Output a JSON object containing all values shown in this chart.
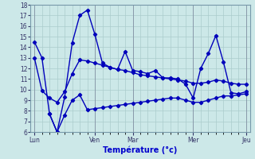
{
  "xlabel": "Température (°c)",
  "background_color": "#cce8e8",
  "grid_color": "#aacccc",
  "line_color": "#0000bb",
  "ylim": [
    6,
    18
  ],
  "yticks": [
    6,
    7,
    8,
    9,
    10,
    11,
    12,
    13,
    14,
    15,
    16,
    17,
    18
  ],
  "num_points": 29,
  "day_x": [
    0,
    8,
    13,
    21,
    28
  ],
  "day_labels": [
    "Lun",
    "Ven",
    "Mar",
    "Mer",
    "Jeu"
  ],
  "max_temps": [
    14.5,
    13.0,
    7.7,
    6.0,
    9.3,
    14.4,
    17.0,
    17.5,
    15.2,
    12.5,
    12.1,
    11.9,
    13.6,
    11.8,
    11.7,
    11.5,
    11.8,
    11.1,
    11.1,
    11.0,
    10.5,
    9.2,
    12.0,
    13.4,
    15.1,
    12.6,
    9.7,
    9.6,
    9.8
  ],
  "mid_temps": [
    13.0,
    9.9,
    9.2,
    8.8,
    9.8,
    11.5,
    12.8,
    12.7,
    12.5,
    12.3,
    12.1,
    11.9,
    11.8,
    11.6,
    11.4,
    11.3,
    11.2,
    11.1,
    11.0,
    10.9,
    10.8,
    10.6,
    10.6,
    10.7,
    10.9,
    10.8,
    10.6,
    10.5,
    10.5
  ],
  "min_temps": [
    null,
    null,
    7.7,
    6.0,
    7.6,
    9.0,
    9.5,
    8.1,
    8.2,
    8.3,
    8.4,
    8.5,
    8.6,
    8.7,
    8.8,
    8.9,
    9.0,
    9.1,
    9.2,
    9.2,
    9.0,
    8.8,
    8.8,
    9.0,
    9.2,
    9.4,
    9.4,
    9.5,
    9.6
  ]
}
